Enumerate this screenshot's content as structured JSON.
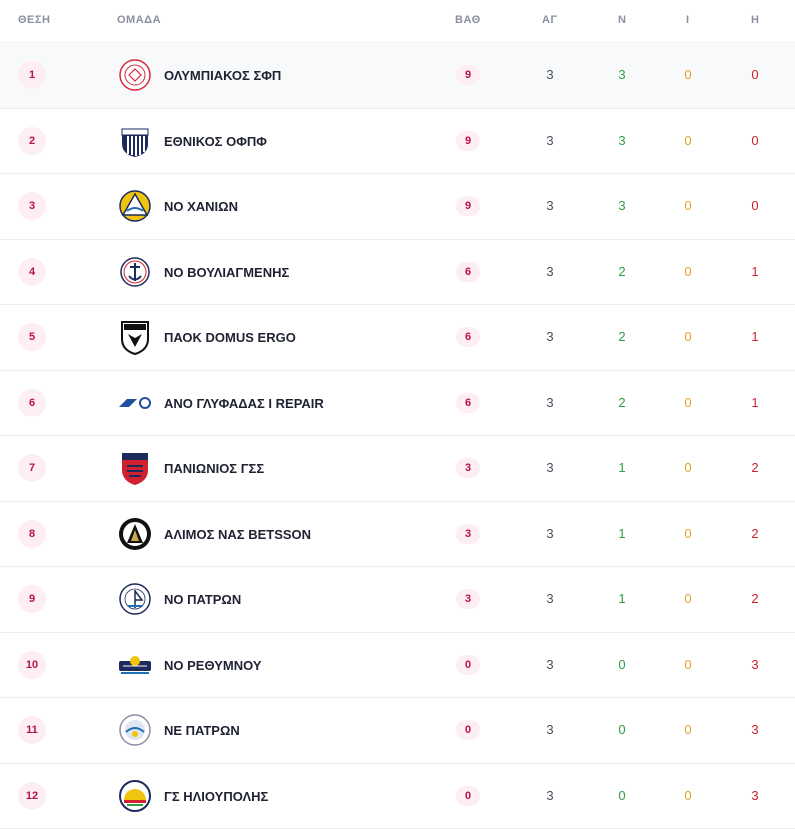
{
  "headers": {
    "pos": "ΘΕΣΗ",
    "team": "ΟΜΑΔΑ",
    "pts": "ΒΑΘ",
    "ag": "ΑΓ",
    "n": "Ν",
    "i": "Ι",
    "h": "Η"
  },
  "rows": [
    {
      "pos": "1",
      "team": "ΟΛΥΜΠΙΑΚΟΣ ΣΦΠ",
      "pts": "9",
      "ag": "3",
      "n": "3",
      "i": "0",
      "h": "0",
      "logo": "olympiakos-logo"
    },
    {
      "pos": "2",
      "team": "ΕΘΝΙΚΟΣ ΟΦΠΦ",
      "pts": "9",
      "ag": "3",
      "n": "3",
      "i": "0",
      "h": "0",
      "logo": "ethnikos-logo"
    },
    {
      "pos": "3",
      "team": "ΝΟ ΧΑΝΙΩΝ",
      "pts": "9",
      "ag": "3",
      "n": "3",
      "i": "0",
      "h": "0",
      "logo": "no-chanion-logo"
    },
    {
      "pos": "4",
      "team": "ΝΟ ΒΟΥΛΙΑΓΜΕΝΗΣ",
      "pts": "6",
      "ag": "3",
      "n": "2",
      "i": "0",
      "h": "1",
      "logo": "vouliagmeni-logo"
    },
    {
      "pos": "5",
      "team": "ΠΑΟΚ DOMUS ERGO",
      "pts": "6",
      "ag": "3",
      "n": "2",
      "i": "0",
      "h": "1",
      "logo": "paok-logo"
    },
    {
      "pos": "6",
      "team": "ΑΝΟ ΓΛΥΦΑΔΑΣ I REPAIR",
      "pts": "6",
      "ag": "3",
      "n": "2",
      "i": "0",
      "h": "1",
      "logo": "glyfada-logo"
    },
    {
      "pos": "7",
      "team": "ΠΑΝΙΩΝΙΟΣ ΓΣΣ",
      "pts": "3",
      "ag": "3",
      "n": "1",
      "i": "0",
      "h": "2",
      "logo": "panionios-logo"
    },
    {
      "pos": "8",
      "team": "ΑΛΙΜΟΣ ΝΑΣ BETSSON",
      "pts": "3",
      "ag": "3",
      "n": "1",
      "i": "0",
      "h": "2",
      "logo": "alimos-logo"
    },
    {
      "pos": "9",
      "team": "ΝΟ ΠΑΤΡΩΝ",
      "pts": "3",
      "ag": "3",
      "n": "1",
      "i": "0",
      "h": "2",
      "logo": "no-patron-logo"
    },
    {
      "pos": "10",
      "team": "ΝΟ ΡΕΘΥΜΝΟΥ",
      "pts": "0",
      "ag": "3",
      "n": "0",
      "i": "0",
      "h": "3",
      "logo": "rethymno-logo"
    },
    {
      "pos": "11",
      "team": "ΝΕ ΠΑΤΡΩΝ",
      "pts": "0",
      "ag": "3",
      "n": "0",
      "i": "0",
      "h": "3",
      "logo": "ne-patron-logo"
    },
    {
      "pos": "12",
      "team": "ΓΣ ΗΛΙΟΥΠΟΛΗΣ",
      "pts": "0",
      "ag": "3",
      "n": "0",
      "i": "0",
      "h": "3",
      "logo": "ilioupoli-logo"
    }
  ],
  "colors": {
    "accent": "#b8124d",
    "badge_bg": "#fdeef2",
    "wins": "#2f9e44",
    "draws": "#e0a22b",
    "losses": "#d0212e"
  }
}
